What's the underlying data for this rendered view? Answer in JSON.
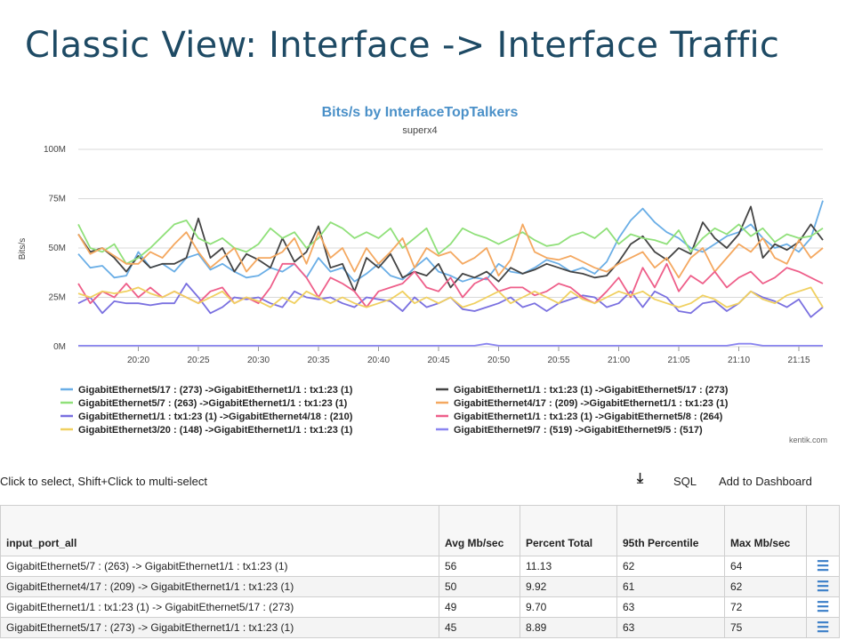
{
  "page": {
    "title": "Classic View: Interface -> Interface Traffic"
  },
  "chart_data": {
    "type": "line",
    "title": "Bits/s by InterfaceTopTalkers",
    "subtitle": "superx4",
    "ylabel": "Bits/s",
    "xlabel": "",
    "ylim": [
      0,
      100
    ],
    "yticks": [
      0,
      25,
      50,
      75,
      100
    ],
    "ytick_labels": [
      "0M",
      "25M",
      "50M",
      "75M",
      "100M"
    ],
    "xlim": [
      0,
      62
    ],
    "xticks": [
      5,
      10,
      15,
      20,
      25,
      30,
      35,
      40,
      45,
      50,
      55,
      60
    ],
    "xtick_labels": [
      "20:20",
      "20:25",
      "20:30",
      "20:35",
      "20:40",
      "20:45",
      "20:50",
      "20:55",
      "21:00",
      "21:05",
      "21:10",
      "21:15"
    ],
    "x": [
      0,
      1,
      2,
      3,
      4,
      5,
      6,
      7,
      8,
      9,
      10,
      11,
      12,
      13,
      14,
      15,
      16,
      17,
      18,
      19,
      20,
      21,
      22,
      23,
      24,
      25,
      26,
      27,
      28,
      29,
      30,
      31,
      32,
      33,
      34,
      35,
      36,
      37,
      38,
      39,
      40,
      41,
      42,
      43,
      44,
      45,
      46,
      47,
      48,
      49,
      50,
      51,
      52,
      53,
      54,
      55,
      56,
      57,
      58,
      59,
      60,
      61,
      62
    ],
    "grid": "horizontal",
    "legend_position": "bottom",
    "credit": "kentik.com",
    "series": [
      {
        "name": "GigabitEthernet5/17 : (273) ->GigabitEthernet1/1 : tx1:23 (1)",
        "color": "#6aaee6",
        "values": [
          47,
          40,
          41,
          35,
          36,
          48,
          40,
          42,
          38,
          45,
          47,
          39,
          42,
          38,
          35,
          36,
          40,
          38,
          42,
          35,
          45,
          38,
          40,
          33,
          37,
          42,
          36,
          34,
          40,
          45,
          38,
          36,
          33,
          35,
          34,
          42,
          38,
          37,
          40,
          44,
          42,
          38,
          40,
          37,
          43,
          55,
          64,
          70,
          63,
          58,
          55,
          50,
          48,
          52,
          56,
          58,
          62,
          55,
          50,
          52,
          48,
          55,
          74
        ]
      },
      {
        "name": "GigabitEthernet1/1 : tx1:23 (1) ->GigabitEthernet5/17 : (273)",
        "color": "#444444",
        "values": [
          57,
          48,
          50,
          45,
          38,
          46,
          40,
          42,
          42,
          45,
          65,
          45,
          50,
          38,
          47,
          44,
          40,
          55,
          43,
          48,
          61,
          40,
          42,
          28,
          45,
          40,
          47,
          35,
          38,
          36,
          42,
          30,
          37,
          35,
          38,
          33,
          40,
          37,
          39,
          42,
          40,
          38,
          37,
          35,
          36,
          43,
          52,
          56,
          48,
          44,
          50,
          47,
          63,
          55,
          50,
          57,
          71,
          45,
          52,
          49,
          53,
          62,
          54
        ]
      },
      {
        "name": "GigabitEthernet5/7 : (263) ->GigabitEthernet1/1 : tx1:23 (1)",
        "color": "#90e07a",
        "values": [
          62,
          50,
          48,
          52,
          42,
          45,
          50,
          56,
          62,
          64,
          55,
          52,
          55,
          50,
          48,
          52,
          60,
          55,
          58,
          50,
          55,
          63,
          60,
          55,
          58,
          55,
          60,
          50,
          55,
          60,
          47,
          52,
          60,
          57,
          55,
          52,
          55,
          58,
          54,
          51,
          52,
          56,
          58,
          55,
          60,
          52,
          57,
          55,
          54,
          52,
          59,
          48,
          55,
          60,
          57,
          62,
          56,
          60,
          53,
          57,
          55,
          56,
          60
        ]
      },
      {
        "name": "GigabitEthernet4/17 : (209) ->GigabitEthernet1/1 : tx1:23 (1)",
        "color": "#f4a860",
        "values": [
          57,
          47,
          50,
          46,
          42,
          42,
          48,
          45,
          52,
          58,
          48,
          40,
          45,
          50,
          38,
          45,
          45,
          48,
          55,
          42,
          58,
          45,
          50,
          38,
          50,
          42,
          48,
          55,
          40,
          50,
          46,
          48,
          42,
          45,
          50,
          36,
          44,
          62,
          48,
          45,
          44,
          46,
          43,
          40,
          38,
          42,
          45,
          48,
          40,
          45,
          35,
          45,
          50,
          38,
          45,
          52,
          48,
          55,
          45,
          42,
          54,
          45,
          50
        ]
      },
      {
        "name": "GigabitEthernet1/1 : tx1:23 (1) ->GigabitEthernet4/18 : (210)",
        "color": "#7a70e0",
        "values": [
          22,
          25,
          17,
          23,
          22,
          22,
          21,
          22,
          22,
          32,
          25,
          17,
          20,
          25,
          24,
          25,
          22,
          20,
          28,
          25,
          24,
          25,
          22,
          20,
          25,
          24,
          23,
          18,
          25,
          20,
          22,
          25,
          19,
          18,
          20,
          22,
          25,
          20,
          22,
          18,
          22,
          24,
          26,
          25,
          20,
          22,
          28,
          20,
          28,
          25,
          18,
          17,
          22,
          23,
          18,
          22,
          28,
          25,
          23,
          20,
          24,
          15,
          20
        ]
      },
      {
        "name": "GigabitEthernet1/1 : tx1:23 (1) ->GigabitEthernet5/8 : (264)",
        "color": "#ee5f8a",
        "values": [
          32,
          22,
          28,
          25,
          32,
          25,
          30,
          25,
          28,
          25,
          22,
          28,
          30,
          22,
          25,
          22,
          30,
          42,
          42,
          35,
          25,
          35,
          32,
          28,
          20,
          28,
          30,
          32,
          38,
          30,
          28,
          35,
          25,
          32,
          35,
          28,
          30,
          30,
          26,
          28,
          32,
          30,
          25,
          22,
          28,
          35,
          25,
          40,
          30,
          42,
          28,
          36,
          32,
          38,
          30,
          35,
          38,
          32,
          35,
          40,
          38,
          35,
          32
        ]
      },
      {
        "name": "GigabitEthernet3/20 : (148) ->GigabitEthernet1/1 : tx1:23 (1)",
        "color": "#f0d060",
        "values": [
          27,
          25,
          28,
          27,
          28,
          30,
          27,
          25,
          28,
          25,
          22,
          25,
          28,
          22,
          25,
          23,
          20,
          25,
          22,
          28,
          25,
          22,
          25,
          22,
          20,
          22,
          24,
          28,
          22,
          25,
          22,
          25,
          20,
          22,
          25,
          28,
          22,
          25,
          28,
          25,
          22,
          28,
          24,
          22,
          25,
          28,
          26,
          28,
          24,
          22,
          20,
          22,
          26,
          24,
          20,
          22,
          28,
          24,
          22,
          26,
          28,
          30,
          20
        ]
      },
      {
        "name": "GigabitEthernet9/7 : (519) ->GigabitEthernet9/5 : (517)",
        "color": "#8a85f0",
        "values": [
          0.5,
          0.5,
          0.5,
          0.5,
          0.5,
          0.5,
          0.5,
          0.5,
          0.5,
          0.5,
          0.5,
          0.5,
          0.5,
          0.5,
          0.5,
          0.5,
          0.5,
          0.5,
          0.5,
          0.5,
          0.5,
          0.5,
          0.5,
          0.5,
          0.5,
          0.5,
          0.5,
          0.5,
          0.5,
          0.5,
          0.5,
          0.5,
          0.5,
          0.5,
          1.5,
          0.5,
          0.5,
          0.5,
          0.5,
          0.5,
          0.5,
          0.5,
          0.5,
          0.5,
          0.5,
          0.5,
          0.5,
          0.5,
          0.5,
          0.5,
          0.5,
          0.5,
          0.5,
          0.5,
          0.5,
          1.5,
          1.5,
          0.5,
          0.5,
          0.5,
          0.5,
          0.5,
          0.5
        ]
      }
    ]
  },
  "toolbar": {
    "hint": "Click to select, Shift+Click to multi-select",
    "download_icon": "download-icon",
    "sql_label": "SQL",
    "dashboard_label": "Add to Dashboard"
  },
  "table": {
    "columns": [
      {
        "label": "input_port_all"
      },
      {
        "label": "Avg Mb/sec"
      },
      {
        "label": "Percent Total"
      },
      {
        "label": "95th Percentile"
      },
      {
        "label": "Max Mb/sec"
      }
    ],
    "rows": [
      {
        "name": "GigabitEthernet5/7 : (263) -> GigabitEthernet1/1 : tx1:23 (1)",
        "avg": "56",
        "pct": "11.13",
        "p95": "62",
        "max": "64"
      },
      {
        "name": "GigabitEthernet4/17 : (209) -> GigabitEthernet1/1 : tx1:23 (1)",
        "avg": "50",
        "pct": "9.92",
        "p95": "61",
        "max": "62"
      },
      {
        "name": "GigabitEthernet1/1 : tx1:23 (1) -> GigabitEthernet5/17 : (273)",
        "avg": "49",
        "pct": "9.70",
        "p95": "63",
        "max": "72"
      },
      {
        "name": "GigabitEthernet5/17 : (273) -> GigabitEthernet1/1 : tx1:23 (1)",
        "avg": "45",
        "pct": "8.89",
        "p95": "63",
        "max": "75"
      }
    ],
    "row_menu_icon": "menu-icon"
  }
}
